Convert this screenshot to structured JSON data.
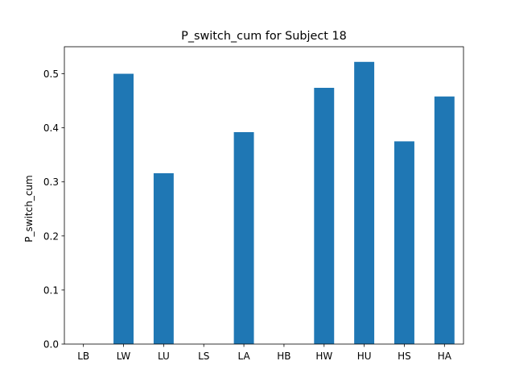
{
  "chart_data": {
    "type": "bar",
    "title": "P_switch_cum for Subject 18",
    "xlabel": "",
    "ylabel": "P_switch_cum",
    "categories": [
      "LB",
      "LW",
      "LU",
      "LS",
      "LA",
      "HB",
      "HW",
      "HU",
      "HS",
      "HA"
    ],
    "values": [
      0.0,
      0.5,
      0.316,
      0.0,
      0.392,
      0.0,
      0.474,
      0.522,
      0.375,
      0.458
    ],
    "ylim": [
      0,
      0.55
    ],
    "yticks": [
      0.0,
      0.1,
      0.2,
      0.3,
      0.4,
      0.5
    ],
    "ytick_labels": [
      "0.0",
      "0.1",
      "0.2",
      "0.3",
      "0.4",
      "0.5"
    ],
    "bar_color": "#1f77b4",
    "grid": false,
    "legend": "none"
  }
}
